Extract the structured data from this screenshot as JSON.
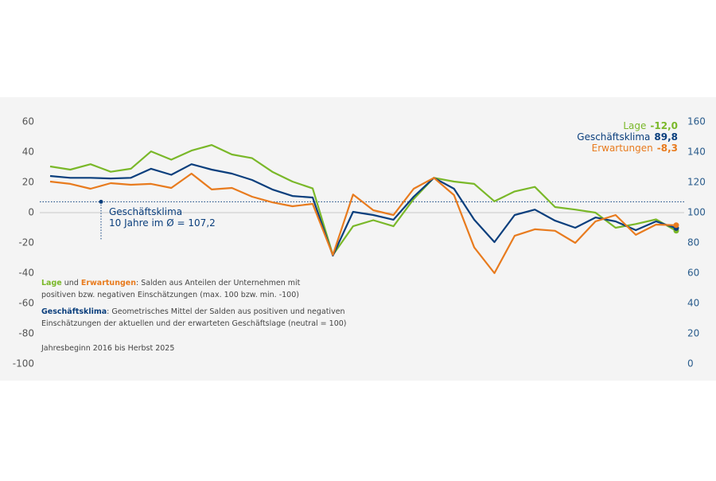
{
  "chart_data": {
    "type": "line",
    "categories": [
      null,
      null,
      null,
      null,
      null,
      null,
      null,
      null,
      null,
      null,
      null,
      null,
      null,
      null,
      null,
      null,
      null,
      null,
      null,
      null,
      null,
      null,
      null,
      null,
      null,
      null,
      null,
      null,
      null,
      null,
      null,
      null
    ],
    "series": [
      {
        "name": "Lage",
        "color": "#7ab829",
        "latest_label": "-12,0",
        "values": [
          30.5,
          28.4,
          32,
          27,
          29,
          40.5,
          35,
          41,
          44.7,
          38.4,
          36,
          27,
          20.5,
          16,
          -28,
          -9,
          -5,
          -9,
          9,
          23,
          20.5,
          19,
          7.5,
          14,
          17,
          3.7,
          2,
          0,
          -10,
          -7.5,
          -4.5,
          -12
        ]
      },
      {
        "name": "Geschäftsklima",
        "color": "#0b3f7d",
        "axis": "y2",
        "latest_label": "89,8",
        "values": [
          124.2,
          123,
          123,
          122.6,
          123,
          129,
          125,
          132,
          128.4,
          125.8,
          121.6,
          115.3,
          111,
          110,
          71.6,
          100.5,
          98.4,
          95.3,
          110.5,
          123,
          115.8,
          95.3,
          80.5,
          98.4,
          102,
          94.7,
          90,
          96.8,
          94.2,
          88.4,
          94.2,
          89.8
        ]
      },
      {
        "name": "Erwartungen",
        "color": "#e87b1e",
        "latest_label": "-8,3",
        "values": [
          20.5,
          19,
          15.8,
          19.5,
          18.4,
          19,
          16.3,
          25.8,
          15.3,
          16.3,
          10.5,
          6.8,
          4.2,
          5.8,
          -28,
          12,
          1.6,
          -1.6,
          15.8,
          23,
          11.6,
          -23,
          -40,
          -15.3,
          -11,
          -12,
          -20,
          -5.8,
          -1.6,
          -14.7,
          -7.9,
          -8.3
        ]
      }
    ],
    "ylim": [
      -100,
      60
    ],
    "yticks": [
      -100,
      -80,
      -60,
      -40,
      -20,
      0,
      20,
      40,
      60
    ],
    "y2lim": [
      0,
      160
    ],
    "y2ticks": [
      0,
      20,
      40,
      60,
      80,
      100,
      120,
      140,
      160
    ],
    "zero_line": true,
    "reference": {
      "value": 107.2,
      "axis": "y2",
      "color": "#0b3f7d",
      "lines": [
        "Geschäftsklima",
        "10 Jahre im Ø = 107,2"
      ]
    },
    "notes": [
      [
        [
          "Lage",
          " und ",
          "Erwartungen",
          ": Salden aus Anteilen der Unternehmen mit"
        ],
        [
          "positiven bzw. negativen Einschätzungen (max. 100 bzw. min. -100)"
        ]
      ],
      [
        [
          "Geschäftsklima",
          ": Geometrisches Mittel der Salden aus positiven und negativen"
        ],
        [
          "Einschätzungen der aktuellen und der erwarteten Geschäftslage (neutral = 100)"
        ]
      ],
      [
        [
          "Jahresbeginn 2016 bis Herbst 2025"
        ]
      ]
    ]
  }
}
